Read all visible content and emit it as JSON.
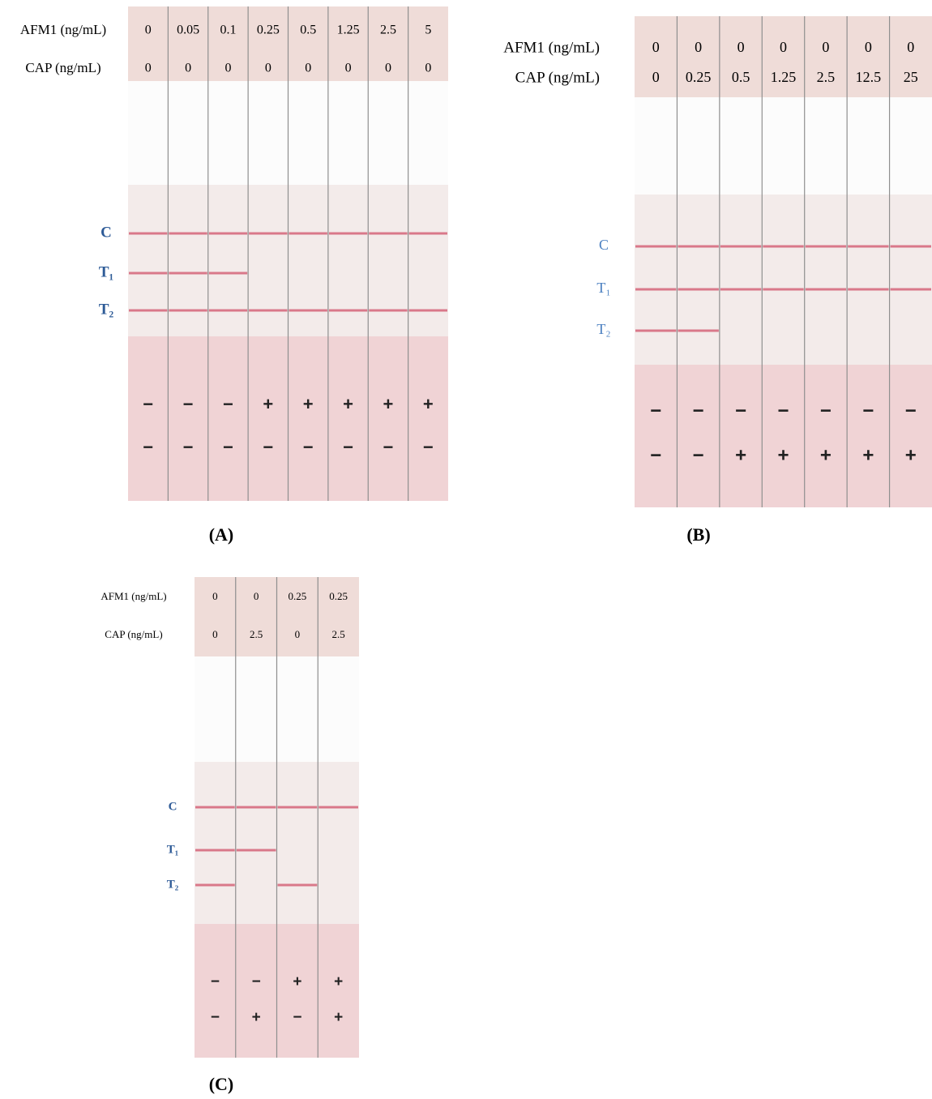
{
  "panels": [
    {
      "label": "(A)",
      "row_labels": [
        "AFM1 (ng/mL)",
        "CAP (ng/mL)"
      ],
      "afm1": [
        "0",
        "0.05",
        "0.1",
        "0.25",
        "0.5",
        "1.25",
        "2.5",
        "5"
      ],
      "cap": [
        "0",
        "0",
        "0",
        "0",
        "0",
        "0",
        "0",
        "0"
      ],
      "line_labels": [
        "C",
        "T₁",
        "T₂"
      ],
      "results": [
        [
          "−",
          "−",
          "−",
          "+",
          "+",
          "+",
          "+",
          "+"
        ],
        [
          "−",
          "−",
          "−",
          "−",
          "−",
          "−",
          "−",
          "−"
        ]
      ]
    },
    {
      "label": "(B)",
      "row_labels": [
        "AFM1 (ng/mL)",
        "CAP (ng/mL)"
      ],
      "afm1": [
        "0",
        "0",
        "0",
        "0",
        "0",
        "0",
        "0"
      ],
      "cap": [
        "0",
        "0.25",
        "0.5",
        "1.25",
        "2.5",
        "12.5",
        "25"
      ],
      "line_labels": [
        "C",
        "T₁",
        "T₂"
      ],
      "results": [
        [
          "−",
          "−",
          "−",
          "−",
          "−",
          "−",
          "−"
        ],
        [
          "−",
          "−",
          "+",
          "+",
          "+",
          "+",
          "+"
        ]
      ]
    },
    {
      "label": "(C)",
      "row_labels": [
        "AFM1 (ng/mL)",
        "CAP (ng/mL)"
      ],
      "afm1": [
        "0",
        "0",
        "0.25",
        "0.25"
      ],
      "cap": [
        "0",
        "2.5",
        "0",
        "2.5"
      ],
      "line_labels": [
        "C",
        "T₁",
        "T₂"
      ],
      "results": [
        [
          "−",
          "−",
          "+",
          "+"
        ],
        [
          "−",
          "+",
          "−",
          "+"
        ]
      ]
    }
  ]
}
